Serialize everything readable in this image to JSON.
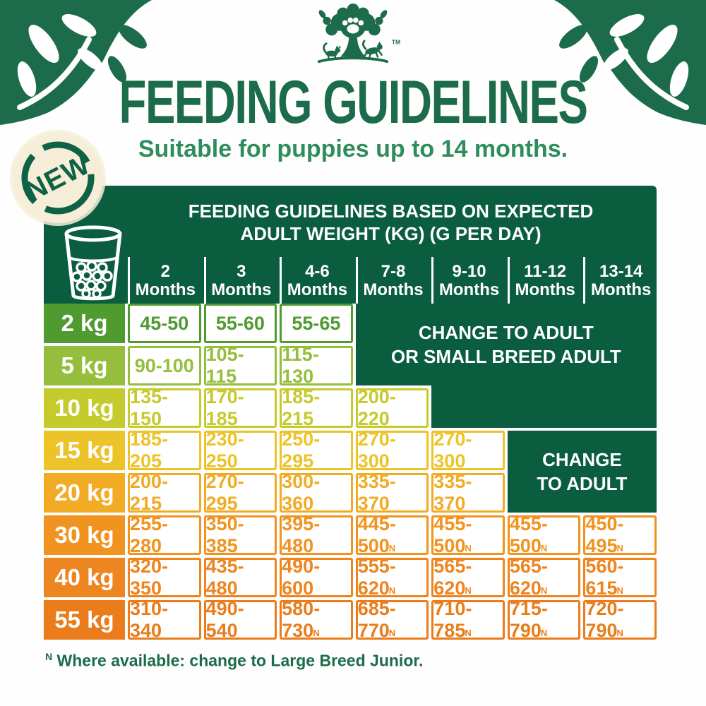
{
  "brand": {
    "tm": "TM"
  },
  "header": {
    "title": "FEEDING GUIDELINES",
    "subtitle": "Suitable for puppies up to 14 months.",
    "badge": "NEW"
  },
  "colors": {
    "dark_green": "#0b5d40",
    "title_green": "#1c6b4b",
    "subtitle_green": "#2f8c5c",
    "badge_cream": "#f6eed9"
  },
  "table": {
    "title_line1": "FEEDING GUIDELINES BASED ON EXPECTED",
    "title_line2": "ADULT WEIGHT (KG) (G PER DAY)",
    "columns": [
      {
        "line1": "2",
        "line2": "Months"
      },
      {
        "line1": "3",
        "line2": "Months"
      },
      {
        "line1": "4-6",
        "line2": "Months"
      },
      {
        "line1": "7-8",
        "line2": "Months"
      },
      {
        "line1": "9-10",
        "line2": "Months"
      },
      {
        "line1": "11-12",
        "line2": "Months"
      },
      {
        "line1": "13-14",
        "line2": "Months"
      }
    ],
    "rows": [
      {
        "label": "2 kg",
        "color": "#4f9b2f",
        "values": [
          {
            "v": "45-50"
          },
          {
            "v": "55-60"
          },
          {
            "v": "55-65"
          }
        ]
      },
      {
        "label": "5 kg",
        "color": "#94be3b",
        "values": [
          {
            "v": "90-100"
          },
          {
            "v": "105-115"
          },
          {
            "v": "115-130"
          }
        ]
      },
      {
        "label": "10 kg",
        "color": "#c5ca2d",
        "values": [
          {
            "v": "135-150"
          },
          {
            "v": "170-185"
          },
          {
            "v": "185-215"
          },
          {
            "v": "200-220"
          }
        ]
      },
      {
        "label": "15 kg",
        "color": "#edc32a",
        "values": [
          {
            "v": "185-205"
          },
          {
            "v": "230-250"
          },
          {
            "v": "250-295"
          },
          {
            "v": "270-300"
          },
          {
            "v": "270-300"
          }
        ]
      },
      {
        "label": "20 kg",
        "color": "#f1ab24",
        "values": [
          {
            "v": "200-215"
          },
          {
            "v": "270-295"
          },
          {
            "v": "300-360"
          },
          {
            "v": "335-370"
          },
          {
            "v": "335-370"
          }
        ]
      },
      {
        "label": "30 kg",
        "color": "#f0931f",
        "values": [
          {
            "v": "255-280"
          },
          {
            "v": "350-385"
          },
          {
            "v": "395-480"
          },
          {
            "v": "445-500",
            "n": true
          },
          {
            "v": "455-500",
            "n": true
          },
          {
            "v": "455-500",
            "n": true
          },
          {
            "v": "450-495",
            "n": true
          }
        ]
      },
      {
        "label": "40 kg",
        "color": "#ed8520",
        "values": [
          {
            "v": "320-350"
          },
          {
            "v": "435-480"
          },
          {
            "v": "490-600"
          },
          {
            "v": "555-620",
            "n": true
          },
          {
            "v": "565-620",
            "n": true
          },
          {
            "v": "565-620",
            "n": true
          },
          {
            "v": "560-615",
            "n": true
          }
        ]
      },
      {
        "label": "55 kg",
        "color": "#ea7c1b",
        "values": [
          {
            "v": "310-340"
          },
          {
            "v": "490-540"
          },
          {
            "v": "580-730",
            "n": true
          },
          {
            "v": "685-770",
            "n": true
          },
          {
            "v": "710-785",
            "n": true
          },
          {
            "v": "715-790",
            "n": true
          },
          {
            "v": "720-790",
            "n": true
          }
        ]
      }
    ],
    "merges": {
      "small_breed": {
        "line1": "CHANGE TO ADULT",
        "line2": "OR SMALL BREED ADULT"
      },
      "adult": {
        "line1": "CHANGE",
        "line2": "TO ADULT"
      }
    }
  },
  "footnote": {
    "marker": "N",
    "text": "Where available: change to Large Breed Junior."
  },
  "chart_data": {
    "type": "table",
    "title": "FEEDING GUIDELINES BASED ON EXPECTED ADULT WEIGHT (KG) (G PER DAY)",
    "subtitle": "Suitable for puppies up to 14 months.",
    "columns": [
      "2 Months",
      "3 Months",
      "4-6 Months",
      "7-8 Months",
      "9-10 Months",
      "11-12 Months",
      "13-14 Months"
    ],
    "row_labels": [
      "2 kg",
      "5 kg",
      "10 kg",
      "15 kg",
      "20 kg",
      "30 kg",
      "40 kg",
      "55 kg"
    ],
    "cells": [
      [
        "45-50",
        "55-60",
        "55-65",
        null,
        null,
        null,
        null
      ],
      [
        "90-100",
        "105-115",
        "115-130",
        null,
        null,
        null,
        null
      ],
      [
        "135-150",
        "170-185",
        "185-215",
        "200-220",
        null,
        null,
        null
      ],
      [
        "185-205",
        "230-250",
        "250-295",
        "270-300",
        "270-300",
        null,
        null
      ],
      [
        "200-215",
        "270-295",
        "300-360",
        "335-370",
        "335-370",
        null,
        null
      ],
      [
        "255-280",
        "350-385",
        "395-480",
        "445-500 N",
        "455-500 N",
        "455-500 N",
        "450-495 N"
      ],
      [
        "320-350",
        "435-480",
        "490-600",
        "555-620 N",
        "565-620 N",
        "565-620 N",
        "560-615 N"
      ],
      [
        "310-340",
        "490-540",
        "580-730 N",
        "685-770 N",
        "710-785 N",
        "715-790 N",
        "720-790 N"
      ]
    ],
    "merged_regions": [
      {
        "rows": "2 kg - 5 kg",
        "columns": "7-8 Months - 13-14 Months",
        "text": "CHANGE TO ADULT OR SMALL BREED ADULT"
      },
      {
        "rows": "10 kg",
        "columns": "9-10 Months - 13-14 Months",
        "text": ""
      },
      {
        "rows": "15 kg - 20 kg",
        "columns": "11-12 Months - 13-14 Months",
        "text": "CHANGE TO ADULT"
      }
    ],
    "footnote": "N Where available: change to Large Breed Junior.",
    "units": "grams per day"
  }
}
